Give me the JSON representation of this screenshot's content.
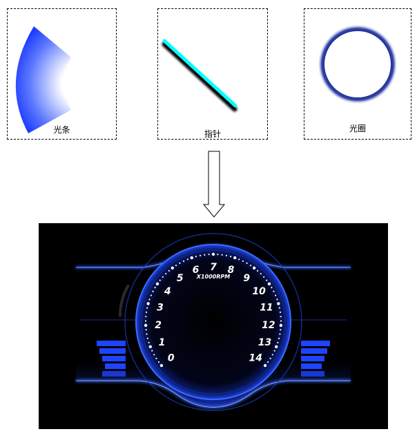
{
  "components": [
    {
      "label": "光条",
      "icon": "light-bar-sector"
    },
    {
      "label": "指针",
      "icon": "needle-bar"
    },
    {
      "label": "光圈",
      "icon": "halo-ring"
    }
  ],
  "gauge": {
    "unit_label": "X1000RPM",
    "numbers": [
      "0",
      "1",
      "2",
      "3",
      "4",
      "5",
      "6",
      "7",
      "8",
      "9",
      "10",
      "11",
      "12",
      "13",
      "14"
    ]
  },
  "colors": {
    "accent_blue": "#2a4cff",
    "needle_cyan": "#00ffff",
    "ring_navy": "#1a2a8a",
    "background": "#000000"
  }
}
